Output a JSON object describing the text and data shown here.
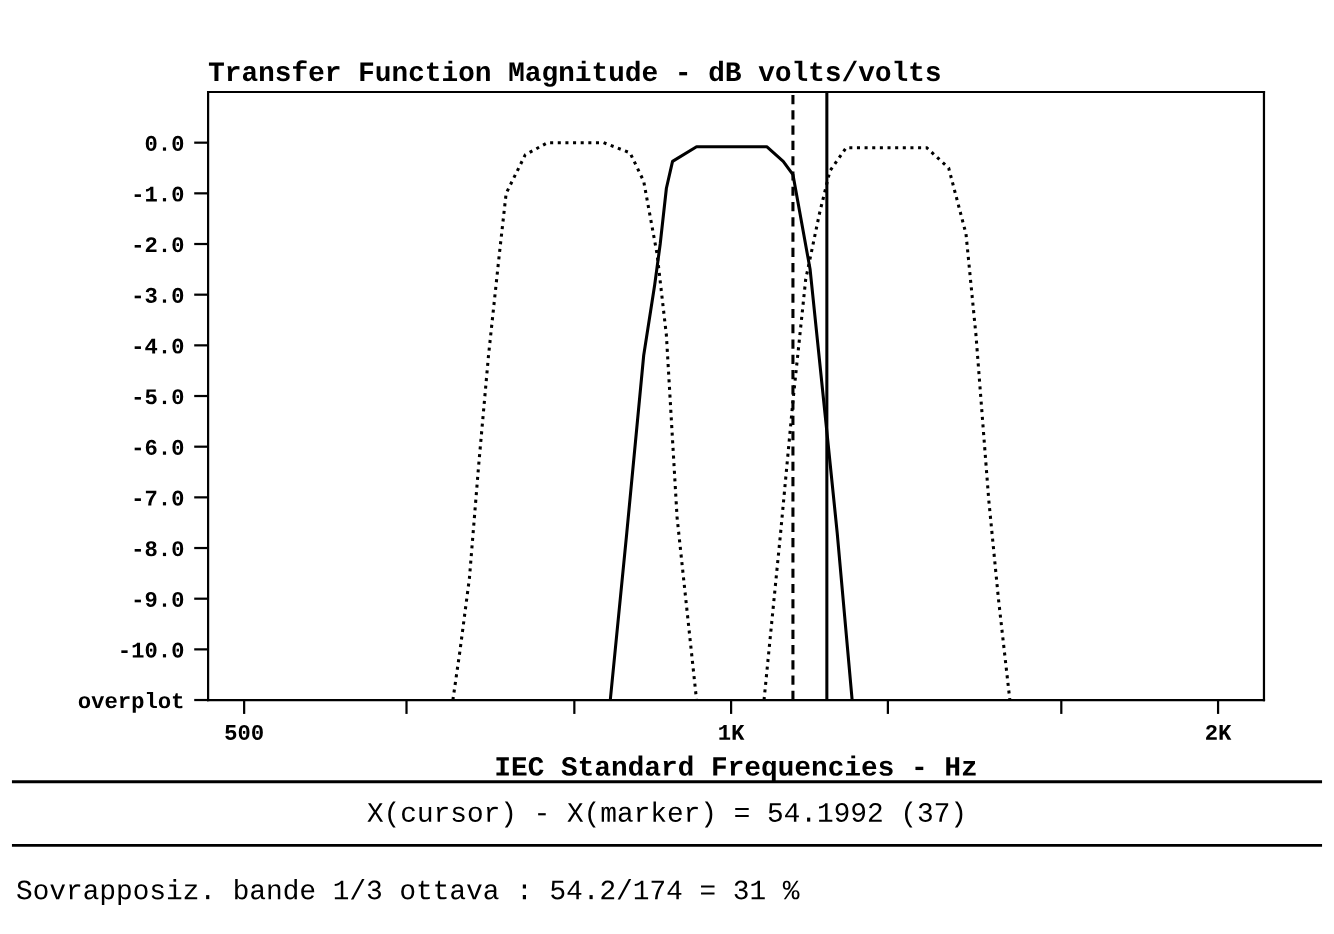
{
  "chart_data": {
    "type": "line",
    "title": "Transfer Function Magnitude - dB volts/volts",
    "xlabel": "IEC Standard Frequencies - Hz",
    "log": "x",
    "xlim": [
      475,
      2135
    ],
    "ylim": [
      -11,
      1
    ],
    "xticks": [
      500,
      {
        "value": 630,
        "label": null
      },
      {
        "value": 800,
        "label": null
      },
      {
        "value": 1000,
        "label": "1K"
      },
      {
        "value": 1250,
        "label": null
      },
      {
        "value": 1600,
        "label": null
      },
      {
        "value": 2000,
        "label": "2K"
      }
    ],
    "yticks": [
      {
        "value": 0,
        "label": "0.0"
      },
      {
        "value": -1,
        "label": "-1.0"
      },
      {
        "value": -2,
        "label": "-2.0"
      },
      {
        "value": -3,
        "label": "-3.0"
      },
      {
        "value": -4,
        "label": "-4.0"
      },
      {
        "value": -5,
        "label": "-5.0"
      },
      {
        "value": -6,
        "label": "-6.0"
      },
      {
        "value": -7,
        "label": "-7.0"
      },
      {
        "value": -8,
        "label": "-8.0"
      },
      {
        "value": -9,
        "label": "-9.0"
      },
      {
        "value": -10,
        "label": "-10.0"
      },
      {
        "value": -11,
        "label": "overplot"
      }
    ],
    "grid": false,
    "legend": false,
    "series": [
      {
        "color": "#000000",
        "line_style": "dotted",
        "x": [
          673,
          680,
          689,
          698,
          708,
          719,
          726,
          746,
          770,
          834,
          866,
          883,
          900,
          912,
          926,
          952
        ],
        "values": [
          -11,
          -10,
          -8.6,
          -6.4,
          -4.2,
          -2.2,
          -1.0,
          -0.24,
          0,
          0,
          -0.2,
          -0.76,
          -2.2,
          -3.8,
          -7.4,
          -11
        ]
      },
      {
        "color": "#000000",
        "line_style": "solid",
        "x": [
          842,
          862,
          883,
          897,
          904,
          912,
          920,
          952,
          1052,
          1077,
          1092,
          1119,
          1146,
          1163,
          1188
        ],
        "values": [
          -11,
          -7.7,
          -4.2,
          -2.8,
          -2.0,
          -0.9,
          -0.37,
          -0.08,
          -0.08,
          -0.37,
          -0.63,
          -2.5,
          -5.7,
          -7.7,
          -11
        ]
      },
      {
        "color": "#000000",
        "line_style": "dotted",
        "x": [
          1048,
          1073,
          1092,
          1112,
          1134,
          1151,
          1178,
          1321,
          1363,
          1397,
          1417,
          1443,
          1463,
          1487
        ],
        "values": [
          -11,
          -7.7,
          -5.1,
          -2.7,
          -1.4,
          -0.56,
          -0.1,
          -0.1,
          -0.5,
          -1.8,
          -3.8,
          -7.05,
          -9.0,
          -11
        ]
      }
    ],
    "ref_lines": [
      {
        "axis": "x",
        "value": 1092,
        "color": "#000000",
        "line_style": "dashed"
      },
      {
        "axis": "x",
        "value": 1146,
        "color": "#000000",
        "line_style": "solid"
      }
    ],
    "annotations": [
      "X(cursor) - X(marker) = 54.1992 (37)",
      "Sovrapposiz. bande 1/3 ottava : 54.2/174 = 31 %"
    ]
  }
}
